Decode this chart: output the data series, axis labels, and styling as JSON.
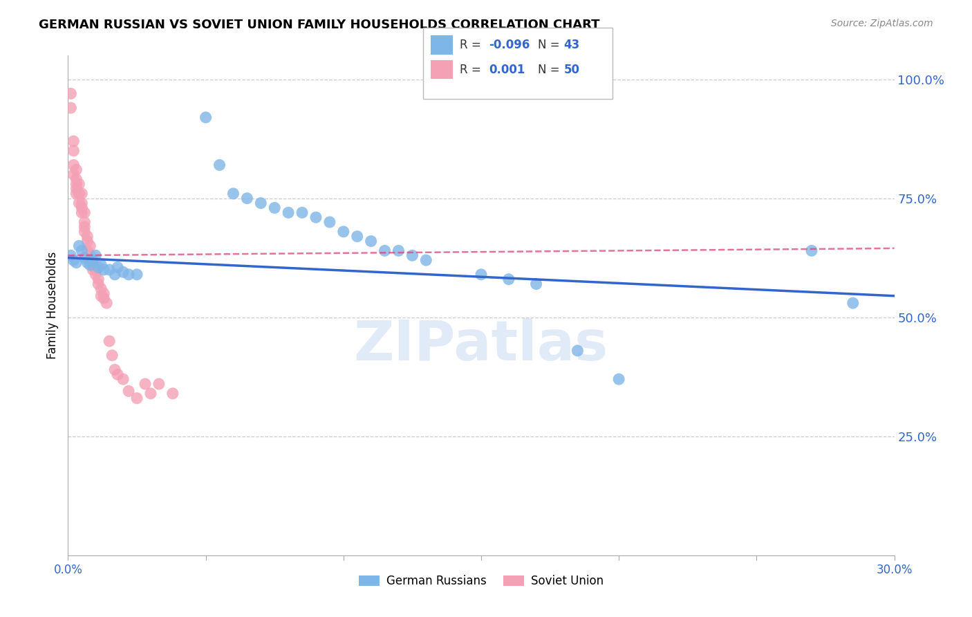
{
  "title": "GERMAN RUSSIAN VS SOVIET UNION FAMILY HOUSEHOLDS CORRELATION CHART",
  "source": "Source: ZipAtlas.com",
  "ylabel": "Family Households",
  "xmin": 0.0,
  "xmax": 0.3,
  "ymin": 0.0,
  "ymax": 1.05,
  "xticks": [
    0.0,
    0.05,
    0.1,
    0.15,
    0.2,
    0.25,
    0.3
  ],
  "xticklabels": [
    "0.0%",
    "",
    "",
    "",
    "",
    "",
    "30.0%"
  ],
  "yticks_right": [
    0.25,
    0.5,
    0.75,
    1.0
  ],
  "ytick_labels_right": [
    "25.0%",
    "50.0%",
    "75.0%",
    "100.0%"
  ],
  "legend_label1": "German Russians",
  "legend_label2": "Soviet Union",
  "blue_color": "#7EB6E8",
  "pink_color": "#F4A0B5",
  "trend_blue": "#3366CC",
  "trend_pink": "#DD4477",
  "axis_color": "#3366CC",
  "text_color": "#333333",
  "watermark_text": "ZIPatlas",
  "blue_dots_x": [
    0.001,
    0.002,
    0.003,
    0.004,
    0.005,
    0.006,
    0.007,
    0.008,
    0.009,
    0.01,
    0.011,
    0.012,
    0.013,
    0.015,
    0.017,
    0.018,
    0.02,
    0.022,
    0.025,
    0.05,
    0.055,
    0.06,
    0.065,
    0.07,
    0.075,
    0.08,
    0.085,
    0.09,
    0.095,
    0.1,
    0.105,
    0.11,
    0.115,
    0.12,
    0.125,
    0.13,
    0.15,
    0.16,
    0.17,
    0.185,
    0.2,
    0.27,
    0.285
  ],
  "blue_dots_y": [
    0.63,
    0.62,
    0.615,
    0.65,
    0.64,
    0.625,
    0.615,
    0.61,
    0.62,
    0.63,
    0.605,
    0.61,
    0.6,
    0.6,
    0.59,
    0.605,
    0.595,
    0.59,
    0.59,
    0.92,
    0.82,
    0.76,
    0.75,
    0.74,
    0.73,
    0.72,
    0.72,
    0.71,
    0.7,
    0.68,
    0.67,
    0.66,
    0.64,
    0.64,
    0.63,
    0.62,
    0.59,
    0.58,
    0.57,
    0.43,
    0.37,
    0.64,
    0.53
  ],
  "pink_dots_x": [
    0.001,
    0.001,
    0.002,
    0.002,
    0.002,
    0.002,
    0.003,
    0.003,
    0.003,
    0.003,
    0.003,
    0.004,
    0.004,
    0.004,
    0.005,
    0.005,
    0.005,
    0.005,
    0.006,
    0.006,
    0.006,
    0.006,
    0.007,
    0.007,
    0.007,
    0.008,
    0.008,
    0.008,
    0.009,
    0.009,
    0.01,
    0.01,
    0.011,
    0.011,
    0.012,
    0.012,
    0.013,
    0.013,
    0.014,
    0.015,
    0.016,
    0.017,
    0.018,
    0.02,
    0.022,
    0.025,
    0.028,
    0.03,
    0.033,
    0.038
  ],
  "pink_dots_y": [
    0.97,
    0.94,
    0.87,
    0.85,
    0.82,
    0.8,
    0.81,
    0.79,
    0.78,
    0.77,
    0.76,
    0.78,
    0.76,
    0.74,
    0.76,
    0.74,
    0.73,
    0.72,
    0.72,
    0.7,
    0.69,
    0.68,
    0.67,
    0.66,
    0.64,
    0.65,
    0.63,
    0.62,
    0.61,
    0.6,
    0.6,
    0.59,
    0.58,
    0.57,
    0.56,
    0.545,
    0.55,
    0.54,
    0.53,
    0.45,
    0.42,
    0.39,
    0.38,
    0.37,
    0.345,
    0.33,
    0.36,
    0.34,
    0.36,
    0.34
  ],
  "blue_trend_x": [
    0.0,
    0.3
  ],
  "blue_trend_y": [
    0.625,
    0.545
  ],
  "pink_trend_x": [
    0.0,
    0.3
  ],
  "pink_trend_y": [
    0.63,
    0.645
  ]
}
